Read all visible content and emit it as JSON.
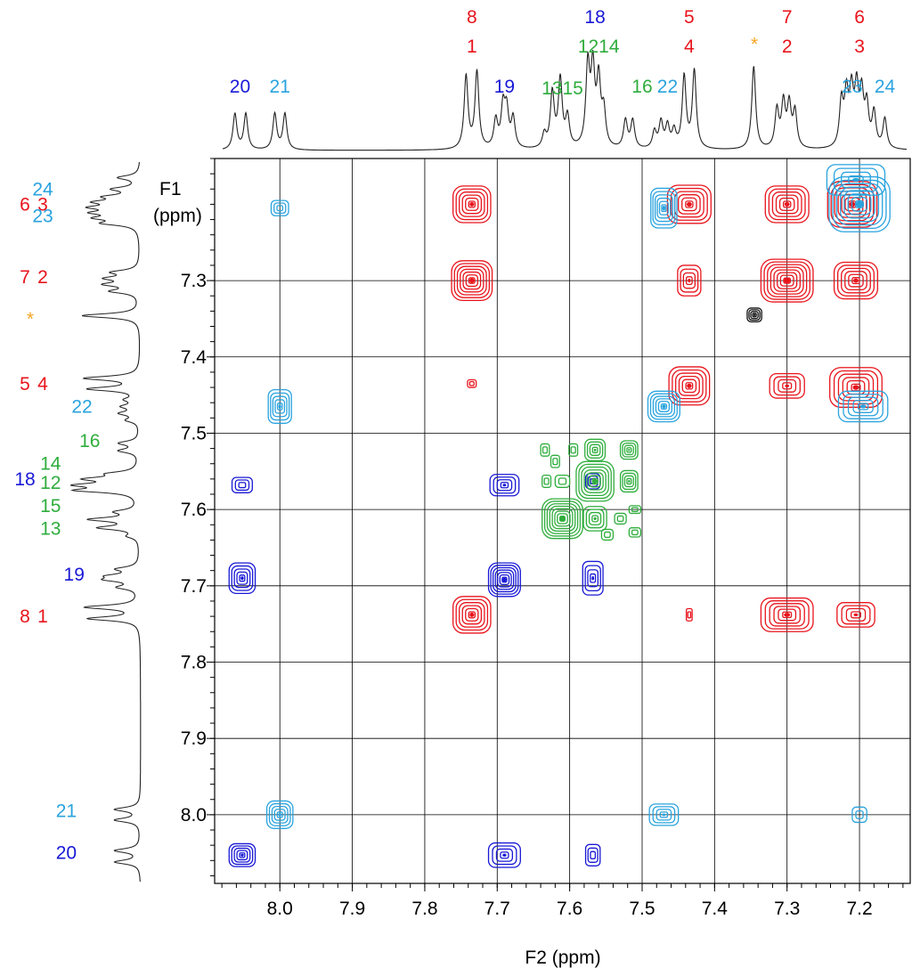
{
  "chart_data": {
    "type": "heatmap",
    "subtype": "2D NMR COSY contour plot with 1D projections",
    "xlabel": "F2 (ppm)",
    "ylabel": "F1 (ppm)",
    "x_axis_reversed": true,
    "y_axis_reversed": true,
    "xlim": [
      8.09,
      7.13
    ],
    "ylim": [
      7.14,
      8.09
    ],
    "xticks": [
      {
        "value": 8.0,
        "label": "8.0"
      },
      {
        "value": 7.9,
        "label": "7.9"
      },
      {
        "value": 7.8,
        "label": "7.8"
      },
      {
        "value": 7.7,
        "label": "7.7"
      },
      {
        "value": 7.6,
        "label": "7.6"
      },
      {
        "value": 7.5,
        "label": "7.5"
      },
      {
        "value": 7.4,
        "label": "7.4"
      },
      {
        "value": 7.3,
        "label": "7.3"
      },
      {
        "value": 7.2,
        "label": "7.2"
      }
    ],
    "yticks": [
      {
        "value": 7.3,
        "label": "7.3"
      },
      {
        "value": 7.4,
        "label": "7.4"
      },
      {
        "value": 7.5,
        "label": "7.5"
      },
      {
        "value": 7.6,
        "label": "7.6"
      },
      {
        "value": 7.7,
        "label": "7.7"
      },
      {
        "value": 7.8,
        "label": "7.8"
      },
      {
        "value": 7.9,
        "label": "7.9"
      },
      {
        "value": 8.0,
        "label": "8.0"
      }
    ],
    "grid": true,
    "colors": {
      "red": "#e8141c",
      "blue": "#1818d6",
      "lightblue": "#29a3de",
      "green": "#2fad3c",
      "orange": "#f5a623",
      "black": "#111111"
    },
    "top_peak_labels": [
      {
        "text": "20",
        "ppm": 8.055,
        "row": 2,
        "color": "blue"
      },
      {
        "text": "21",
        "ppm": 8.0,
        "row": 2,
        "color": "lightblue"
      },
      {
        "text": "8",
        "ppm": 7.735,
        "row": 0,
        "color": "red"
      },
      {
        "text": "1",
        "ppm": 7.735,
        "row": 1,
        "color": "red"
      },
      {
        "text": "19",
        "ppm": 7.69,
        "row": 2,
        "color": "blue"
      },
      {
        "text": "1315",
        "ppm": 7.61,
        "row": 1.6,
        "color": "green"
      },
      {
        "text": "18",
        "ppm": 7.565,
        "row": 0,
        "color": "blue"
      },
      {
        "text": "1214",
        "ppm": 7.56,
        "row": 1,
        "color": "green"
      },
      {
        "text": "16",
        "ppm": 7.5,
        "row": 2,
        "color": "green"
      },
      {
        "text": "22",
        "ppm": 7.465,
        "row": 2,
        "color": "lightblue"
      },
      {
        "text": "5",
        "ppm": 7.435,
        "row": 0,
        "color": "red"
      },
      {
        "text": "4",
        "ppm": 7.435,
        "row": 1,
        "color": "red"
      },
      {
        "text": "*",
        "ppm": 7.345,
        "row": 0.8,
        "color": "orange"
      },
      {
        "text": "7",
        "ppm": 7.3,
        "row": 0,
        "color": "red"
      },
      {
        "text": "2",
        "ppm": 7.3,
        "row": 1,
        "color": "red"
      },
      {
        "text": "6",
        "ppm": 7.2,
        "row": 0,
        "color": "red"
      },
      {
        "text": "3",
        "ppm": 7.2,
        "row": 1,
        "color": "red"
      },
      {
        "text": "23",
        "ppm": 7.21,
        "row": 2,
        "color": "lightblue"
      },
      {
        "text": "24",
        "ppm": 7.165,
        "row": 2,
        "color": "lightblue"
      }
    ],
    "left_peak_labels": [
      {
        "text": "24",
        "ppm": 7.18,
        "col": 1,
        "color": "lightblue"
      },
      {
        "text": "6",
        "ppm": 7.2,
        "col": 0,
        "color": "red"
      },
      {
        "text": "3",
        "ppm": 7.2,
        "col": 1,
        "color": "red"
      },
      {
        "text": "23",
        "ppm": 7.215,
        "col": 1,
        "color": "lightblue"
      },
      {
        "text": "7",
        "ppm": 7.295,
        "col": 0,
        "color": "red"
      },
      {
        "text": "2",
        "ppm": 7.295,
        "col": 1,
        "color": "red"
      },
      {
        "text": "*",
        "ppm": 7.35,
        "col": 0.3,
        "color": "orange"
      },
      {
        "text": "5",
        "ppm": 7.435,
        "col": 0,
        "color": "red"
      },
      {
        "text": "4",
        "ppm": 7.435,
        "col": 1,
        "color": "red"
      },
      {
        "text": "22",
        "ppm": 7.465,
        "col": 2,
        "color": "lightblue"
      },
      {
        "text": "16",
        "ppm": 7.51,
        "col": 2.2,
        "color": "green"
      },
      {
        "text": "14",
        "ppm": 7.54,
        "col": 1.2,
        "color": "green"
      },
      {
        "text": "18",
        "ppm": 7.56,
        "col": 0,
        "color": "blue"
      },
      {
        "text": "12",
        "ppm": 7.565,
        "col": 1.2,
        "color": "green"
      },
      {
        "text": "15",
        "ppm": 7.595,
        "col": 1.2,
        "color": "green"
      },
      {
        "text": "13",
        "ppm": 7.625,
        "col": 1.2,
        "color": "green"
      },
      {
        "text": "19",
        "ppm": 7.685,
        "col": 1.8,
        "color": "blue"
      },
      {
        "text": "8",
        "ppm": 7.74,
        "col": 0,
        "color": "red"
      },
      {
        "text": "1",
        "ppm": 7.74,
        "col": 1,
        "color": "red"
      },
      {
        "text": "21",
        "ppm": 7.995,
        "col": 1.6,
        "color": "lightblue"
      },
      {
        "text": "20",
        "ppm": 8.05,
        "col": 1.6,
        "color": "blue"
      }
    ],
    "spectrum_peaks": [
      {
        "ppm": 8.062,
        "height": 0.36
      },
      {
        "ppm": 8.047,
        "height": 0.36
      },
      {
        "ppm": 8.007,
        "height": 0.36
      },
      {
        "ppm": 7.993,
        "height": 0.36
      },
      {
        "ppm": 7.743,
        "height": 0.73
      },
      {
        "ppm": 7.728,
        "height": 0.77
      },
      {
        "ppm": 7.702,
        "height": 0.28
      },
      {
        "ppm": 7.692,
        "height": 0.4
      },
      {
        "ppm": 7.687,
        "height": 0.36
      },
      {
        "ppm": 7.678,
        "height": 0.3
      },
      {
        "ppm": 7.635,
        "height": 0.14
      },
      {
        "ppm": 7.624,
        "height": 0.55
      },
      {
        "ppm": 7.613,
        "height": 0.68
      },
      {
        "ppm": 7.603,
        "height": 0.3
      },
      {
        "ppm": 7.575,
        "height": 0.8
      },
      {
        "ppm": 7.568,
        "height": 0.75
      },
      {
        "ppm": 7.56,
        "height": 0.65
      },
      {
        "ppm": 7.553,
        "height": 0.35
      },
      {
        "ppm": 7.523,
        "height": 0.28
      },
      {
        "ppm": 7.513,
        "height": 0.28
      },
      {
        "ppm": 7.483,
        "height": 0.17
      },
      {
        "ppm": 7.474,
        "height": 0.26
      },
      {
        "ppm": 7.465,
        "height": 0.22
      },
      {
        "ppm": 7.456,
        "height": 0.17
      },
      {
        "ppm": 7.442,
        "height": 0.72
      },
      {
        "ppm": 7.428,
        "height": 0.78
      },
      {
        "ppm": 7.346,
        "height": 0.83
      },
      {
        "ppm": 7.314,
        "height": 0.38
      },
      {
        "ppm": 7.305,
        "height": 0.44
      },
      {
        "ppm": 7.297,
        "height": 0.42
      },
      {
        "ppm": 7.289,
        "height": 0.36
      },
      {
        "ppm": 7.225,
        "height": 0.45
      },
      {
        "ppm": 7.218,
        "height": 0.5
      },
      {
        "ppm": 7.211,
        "height": 0.52
      },
      {
        "ppm": 7.204,
        "height": 0.55
      },
      {
        "ppm": 7.197,
        "height": 0.5
      },
      {
        "ppm": 7.19,
        "height": 0.4
      },
      {
        "ppm": 7.18,
        "height": 0.35
      },
      {
        "ppm": 7.165,
        "height": 0.3
      }
    ],
    "cross_peaks": [
      {
        "f2": 7.735,
        "f1": 7.2,
        "w": 0.026,
        "h": 0.024,
        "color": "red",
        "rings": 6
      },
      {
        "f2": 7.735,
        "f1": 7.3,
        "w": 0.028,
        "h": 0.026,
        "color": "red",
        "rings": 7
      },
      {
        "f2": 7.735,
        "f1": 7.435,
        "w": 0.006,
        "h": 0.005,
        "color": "red",
        "rings": 2
      },
      {
        "f2": 7.735,
        "f1": 7.738,
        "w": 0.026,
        "h": 0.024,
        "color": "red",
        "rings": 6
      },
      {
        "f2": 7.435,
        "f1": 7.2,
        "w": 0.03,
        "h": 0.025,
        "color": "red",
        "rings": 6
      },
      {
        "f2": 7.435,
        "f1": 7.3,
        "w": 0.016,
        "h": 0.02,
        "color": "red",
        "rings": 4
      },
      {
        "f2": 7.435,
        "f1": 7.438,
        "w": 0.028,
        "h": 0.025,
        "color": "red",
        "rings": 6
      },
      {
        "f2": 7.435,
        "f1": 7.738,
        "w": 0.004,
        "h": 0.008,
        "color": "red",
        "rings": 2
      },
      {
        "f2": 7.3,
        "f1": 7.2,
        "w": 0.03,
        "h": 0.024,
        "color": "red",
        "rings": 6
      },
      {
        "f2": 7.3,
        "f1": 7.3,
        "w": 0.036,
        "h": 0.028,
        "color": "red",
        "rings": 8
      },
      {
        "f2": 7.3,
        "f1": 7.438,
        "w": 0.024,
        "h": 0.016,
        "color": "red",
        "rings": 4
      },
      {
        "f2": 7.3,
        "f1": 7.738,
        "w": 0.036,
        "h": 0.022,
        "color": "red",
        "rings": 6
      },
      {
        "f2": 7.205,
        "f1": 7.3,
        "w": 0.03,
        "h": 0.024,
        "color": "red",
        "rings": 6
      },
      {
        "f2": 7.205,
        "f1": 7.44,
        "w": 0.036,
        "h": 0.026,
        "color": "red",
        "rings": 6
      },
      {
        "f2": 7.205,
        "f1": 7.738,
        "w": 0.026,
        "h": 0.016,
        "color": "red",
        "rings": 4
      },
      {
        "f2": 7.21,
        "f1": 7.2,
        "w": 0.034,
        "h": 0.03,
        "color": "red",
        "rings": 7
      },
      {
        "f2": 8.0,
        "f1": 7.205,
        "w": 0.012,
        "h": 0.01,
        "color": "lightblue",
        "rings": 3
      },
      {
        "f2": 8.0,
        "f1": 7.465,
        "w": 0.016,
        "h": 0.022,
        "color": "lightblue",
        "rings": 5
      },
      {
        "f2": 8.0,
        "f1": 8.0,
        "w": 0.018,
        "h": 0.018,
        "color": "lightblue",
        "rings": 5
      },
      {
        "f2": 7.47,
        "f1": 7.205,
        "w": 0.018,
        "h": 0.026,
        "color": "lightblue",
        "rings": 6
      },
      {
        "f2": 7.47,
        "f1": 7.465,
        "w": 0.022,
        "h": 0.02,
        "color": "lightblue",
        "rings": 6
      },
      {
        "f2": 7.47,
        "f1": 8.0,
        "w": 0.02,
        "h": 0.014,
        "color": "lightblue",
        "rings": 4
      },
      {
        "f2": 7.195,
        "f1": 7.465,
        "w": 0.034,
        "h": 0.02,
        "color": "lightblue",
        "rings": 5
      },
      {
        "f2": 7.2,
        "f1": 8.0,
        "w": 0.01,
        "h": 0.01,
        "color": "lightblue",
        "rings": 2
      },
      {
        "f2": 7.2,
        "f1": 7.2,
        "w": 0.042,
        "h": 0.036,
        "color": "lightblue",
        "rings": 8
      },
      {
        "f2": 7.205,
        "f1": 7.168,
        "w": 0.04,
        "h": 0.02,
        "color": "lightblue",
        "rings": 4
      },
      {
        "f2": 8.052,
        "f1": 7.568,
        "w": 0.014,
        "h": 0.01,
        "color": "blue",
        "rings": 3
      },
      {
        "f2": 8.052,
        "f1": 7.69,
        "w": 0.018,
        "h": 0.02,
        "color": "blue",
        "rings": 5
      },
      {
        "f2": 8.052,
        "f1": 8.053,
        "w": 0.018,
        "h": 0.015,
        "color": "blue",
        "rings": 5
      },
      {
        "f2": 7.69,
        "f1": 7.568,
        "w": 0.02,
        "h": 0.014,
        "color": "blue",
        "rings": 4
      },
      {
        "f2": 7.69,
        "f1": 7.692,
        "w": 0.022,
        "h": 0.022,
        "color": "blue",
        "rings": 7
      },
      {
        "f2": 7.69,
        "f1": 8.053,
        "w": 0.022,
        "h": 0.016,
        "color": "blue",
        "rings": 4
      },
      {
        "f2": 7.568,
        "f1": 7.69,
        "w": 0.014,
        "h": 0.022,
        "color": "blue",
        "rings": 4
      },
      {
        "f2": 7.568,
        "f1": 8.053,
        "w": 0.01,
        "h": 0.014,
        "color": "blue",
        "rings": 3
      },
      {
        "f2": 7.568,
        "f1": 7.563,
        "w": 0.01,
        "h": 0.01,
        "color": "blue",
        "rings": 3
      },
      {
        "f2": 7.61,
        "f1": 7.612,
        "w": 0.028,
        "h": 0.026,
        "color": "green",
        "rings": 8
      },
      {
        "f2": 7.565,
        "f1": 7.563,
        "w": 0.026,
        "h": 0.026,
        "color": "green",
        "rings": 7
      },
      {
        "f2": 7.518,
        "f1": 7.522,
        "w": 0.012,
        "h": 0.012,
        "color": "green",
        "rings": 4
      },
      {
        "f2": 7.565,
        "f1": 7.522,
        "w": 0.014,
        "h": 0.014,
        "color": "green",
        "rings": 4
      },
      {
        "f2": 7.518,
        "f1": 7.563,
        "w": 0.012,
        "h": 0.014,
        "color": "green",
        "rings": 4
      },
      {
        "f2": 7.565,
        "f1": 7.612,
        "w": 0.016,
        "h": 0.016,
        "color": "green",
        "rings": 4
      },
      {
        "f2": 7.61,
        "f1": 7.563,
        "w": 0.01,
        "h": 0.008,
        "color": "green",
        "rings": 2
      },
      {
        "f2": 7.632,
        "f1": 7.563,
        "w": 0.006,
        "h": 0.008,
        "color": "green",
        "rings": 2
      },
      {
        "f2": 7.62,
        "f1": 7.537,
        "w": 0.006,
        "h": 0.008,
        "color": "green",
        "rings": 2
      },
      {
        "f2": 7.634,
        "f1": 7.522,
        "w": 0.006,
        "h": 0.008,
        "color": "green",
        "rings": 2
      },
      {
        "f2": 7.595,
        "f1": 7.522,
        "w": 0.006,
        "h": 0.008,
        "color": "green",
        "rings": 2
      },
      {
        "f2": 7.548,
        "f1": 7.633,
        "w": 0.008,
        "h": 0.007,
        "color": "green",
        "rings": 2
      },
      {
        "f2": 7.53,
        "f1": 7.612,
        "w": 0.008,
        "h": 0.007,
        "color": "green",
        "rings": 2
      },
      {
        "f2": 7.51,
        "f1": 7.6,
        "w": 0.008,
        "h": 0.005,
        "color": "green",
        "rings": 2
      },
      {
        "f2": 7.51,
        "f1": 7.63,
        "w": 0.008,
        "h": 0.006,
        "color": "green",
        "rings": 2
      },
      {
        "f2": 7.345,
        "f1": 7.345,
        "w": 0.01,
        "h": 0.009,
        "color": "black",
        "rings": 4
      }
    ]
  }
}
